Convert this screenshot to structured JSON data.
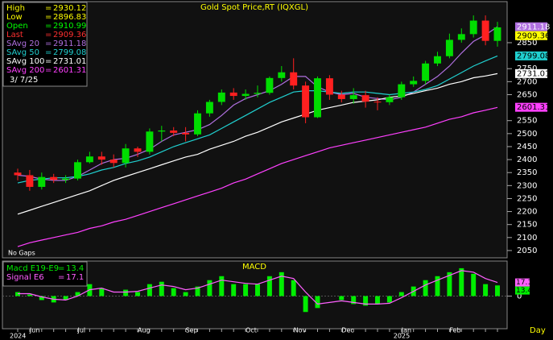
{
  "chart_data": {
    "type": "candlestick",
    "title": "Gold Spot Price,RT (IQXGL)",
    "separator": "=",
    "date": "3/ 7/25",
    "note": "No Gaps",
    "period": "Day",
    "categories": [
      null,
      "Jun",
      null,
      null,
      null,
      "Jul",
      null,
      null,
      null,
      null,
      "Aug",
      null,
      null,
      null,
      "Sep",
      null,
      null,
      null,
      null,
      "Oct",
      null,
      null,
      null,
      "Nov",
      null,
      null,
      null,
      "Dec",
      null,
      null,
      null,
      null,
      "Jan",
      null,
      null,
      null,
      "Feb",
      null,
      null,
      null,
      null
    ],
    "years": [
      "2024",
      null,
      null,
      null,
      null,
      null,
      null,
      null,
      null,
      null,
      null,
      null,
      null,
      null,
      null,
      null,
      null,
      null,
      null,
      null,
      null,
      null,
      null,
      null,
      null,
      null,
      null,
      null,
      null,
      null,
      null,
      null,
      "2025",
      null,
      null,
      null,
      null,
      null,
      null,
      null,
      null
    ],
    "quote": [
      {
        "name": "High",
        "value": 2930.12,
        "color": "#ffff00"
      },
      {
        "name": "Low",
        "value": 2896.83,
        "color": "#ffff00"
      },
      {
        "name": "Open",
        "value": 2910.99,
        "color": "#00ff00"
      },
      {
        "name": "Last",
        "value": 2909.36,
        "color": "#ff3030"
      }
    ],
    "open": [
      2350,
      2340,
      2295,
      2333,
      2322,
      2327,
      2390,
      2412,
      2400,
      2387,
      2443,
      2430,
      2508,
      2512,
      2503,
      2497,
      2578,
      2622,
      2658,
      2645,
      2653,
      2657,
      2714,
      2736,
      2685,
      2563,
      2713,
      2650,
      2633,
      2648,
      2623,
      2621,
      2640,
      2690,
      2703,
      2770,
      2798,
      2861,
      2883,
      2935,
      2857
    ],
    "high": [
      2365,
      2360,
      2350,
      2345,
      2340,
      2400,
      2430,
      2430,
      2420,
      2460,
      2450,
      2520,
      2530,
      2525,
      2525,
      2590,
      2630,
      2670,
      2675,
      2670,
      2685,
      2720,
      2760,
      2790,
      2700,
      2720,
      2725,
      2665,
      2675,
      2665,
      2640,
      2650,
      2700,
      2720,
      2780,
      2815,
      2885,
      2905,
      2955,
      2955,
      2930
    ],
    "low": [
      2320,
      2280,
      2285,
      2310,
      2310,
      2320,
      2385,
      2380,
      2370,
      2370,
      2410,
      2420,
      2470,
      2490,
      2470,
      2490,
      2565,
      2610,
      2630,
      2630,
      2640,
      2650,
      2700,
      2670,
      2540,
      2560,
      2630,
      2620,
      2615,
      2600,
      2590,
      2610,
      2630,
      2680,
      2690,
      2760,
      2790,
      2850,
      2870,
      2840,
      2835
    ],
    "close": [
      2340,
      2295,
      2333,
      2322,
      2327,
      2390,
      2412,
      2400,
      2387,
      2443,
      2430,
      2508,
      2512,
      2503,
      2497,
      2578,
      2622,
      2658,
      2645,
      2653,
      2657,
      2714,
      2736,
      2685,
      2563,
      2713,
      2650,
      2633,
      2648,
      2623,
      2621,
      2640,
      2690,
      2703,
      2770,
      2798,
      2861,
      2883,
      2935,
      2857,
      2909
    ],
    "up_color": "#00dd00",
    "down_color": "#ff2020",
    "series": [
      {
        "name": "SAvg 20",
        "color": "#b070e0",
        "last": 2911.18,
        "values": [
          2340,
          2335,
          2325,
          2320,
          2320,
          2335,
          2360,
          2385,
          2400,
          2405,
          2420,
          2440,
          2470,
          2495,
          2505,
          2515,
          2535,
          2570,
          2610,
          2635,
          2650,
          2665,
          2690,
          2720,
          2720,
          2680,
          2660,
          2650,
          2655,
          2640,
          2635,
          2630,
          2640,
          2660,
          2690,
          2720,
          2760,
          2810,
          2855,
          2880,
          2911
        ]
      },
      {
        "name": "SAvg 50",
        "color": "#20d0d0",
        "last": 2799.08,
        "values": [
          2310,
          2320,
          2325,
          2330,
          2330,
          2335,
          2345,
          2360,
          2370,
          2385,
          2395,
          2410,
          2430,
          2450,
          2465,
          2480,
          2495,
          2520,
          2545,
          2570,
          2595,
          2620,
          2640,
          2660,
          2665,
          2665,
          2660,
          2655,
          2660,
          2660,
          2655,
          2650,
          2655,
          2660,
          2670,
          2685,
          2710,
          2735,
          2760,
          2780,
          2799
        ]
      },
      {
        "name": "SAvg 100",
        "color": "#ffffff",
        "last": 2731.01,
        "values": [
          2190,
          2205,
          2220,
          2235,
          2250,
          2265,
          2280,
          2300,
          2320,
          2335,
          2350,
          2365,
          2380,
          2395,
          2410,
          2420,
          2440,
          2455,
          2470,
          2490,
          2505,
          2525,
          2545,
          2560,
          2575,
          2590,
          2600,
          2610,
          2620,
          2625,
          2630,
          2640,
          2645,
          2655,
          2665,
          2675,
          2690,
          2700,
          2715,
          2722,
          2731
        ]
      },
      {
        "name": "SAvg 200",
        "color": "#ff40ff",
        "last": 2601.31,
        "values": [
          2065,
          2080,
          2090,
          2100,
          2110,
          2120,
          2135,
          2145,
          2160,
          2170,
          2185,
          2200,
          2215,
          2230,
          2245,
          2260,
          2275,
          2290,
          2310,
          2325,
          2345,
          2365,
          2385,
          2400,
          2415,
          2430,
          2445,
          2455,
          2465,
          2475,
          2485,
          2495,
          2505,
          2515,
          2525,
          2540,
          2555,
          2565,
          2580,
          2590,
          2601
        ]
      }
    ],
    "ylim": [
      2025,
      3005
    ],
    "yticks": [
      2050,
      2100,
      2150,
      2200,
      2250,
      2300,
      2350,
      2400,
      2450,
      2500,
      2550,
      2650,
      2700,
      2750,
      2850
    ],
    "macd": {
      "title": "MACD",
      "series": [
        {
          "name": "Macd E19-E9",
          "color": "#00ee00",
          "last": 13.4,
          "values": [
            5,
            2,
            -5,
            -8,
            -5,
            5,
            15,
            10,
            0,
            8,
            5,
            15,
            18,
            10,
            5,
            12,
            20,
            25,
            15,
            15,
            15,
            25,
            30,
            20,
            -20,
            -15,
            0,
            -5,
            -10,
            -12,
            -10,
            -8,
            5,
            12,
            20,
            25,
            30,
            35,
            28,
            15,
            13.4
          ]
        },
        {
          "name": "Signal E6",
          "color": "#ff60ff",
          "last": 17.1,
          "values": [
            3,
            3,
            -1,
            -4,
            -5,
            0,
            8,
            10,
            5,
            5,
            6,
            10,
            14,
            12,
            8,
            10,
            15,
            20,
            18,
            16,
            15,
            20,
            25,
            22,
            5,
            -10,
            -8,
            -6,
            -8,
            -10,
            -10,
            -9,
            -2,
            6,
            14,
            20,
            26,
            32,
            30,
            22,
            17.1
          ]
        }
      ],
      "ylim": [
        -40,
        43
      ],
      "yticks": [
        0
      ]
    }
  }
}
